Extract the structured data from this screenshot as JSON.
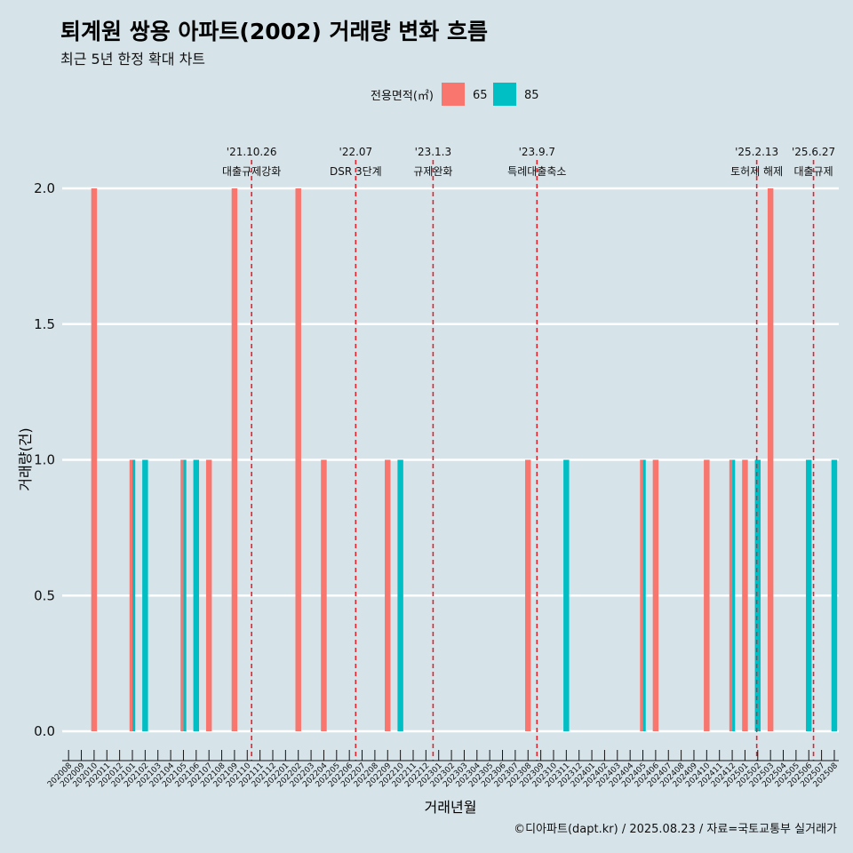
{
  "header": {
    "title": "퇴계원 쌍용 아파트(2002) 거래량 변화 흐름",
    "subtitle": "최근 5년 한정 확대 차트"
  },
  "footer": {
    "caption": "©디아파트(dapt.kr) / 2025.08.23 / 자료=국토교통부 실거래가"
  },
  "colors": {
    "background": "#d6e4ea",
    "series_65": "#f8766d",
    "series_85": "#00bfc4",
    "event_line": "#e8202a",
    "grid": "#ffffff"
  },
  "chart_data": {
    "type": "bar",
    "xlabel": "거래년월",
    "ylabel": "거래량(건)",
    "ylim": [
      0,
      2
    ],
    "yticks": [
      0.0,
      0.5,
      1.0,
      1.5,
      2.0
    ],
    "ytick_labels": [
      "0.0",
      "0.5",
      "1.0",
      "1.5",
      "2.0"
    ],
    "legend": {
      "title": "전용면적(㎡)",
      "placement": "top"
    },
    "categories": [
      "202008",
      "202009",
      "202010",
      "202011",
      "202012",
      "202101",
      "202102",
      "202103",
      "202104",
      "202105",
      "202106",
      "202107",
      "202108",
      "202109",
      "202110",
      "202111",
      "202112",
      "202201",
      "202202",
      "202203",
      "202204",
      "202205",
      "202206",
      "202207",
      "202208",
      "202209",
      "202210",
      "202211",
      "202212",
      "202301",
      "202302",
      "202303",
      "202304",
      "202305",
      "202306",
      "202307",
      "202308",
      "202309",
      "202310",
      "202311",
      "202312",
      "202401",
      "202402",
      "202403",
      "202404",
      "202405",
      "202406",
      "202407",
      "202408",
      "202409",
      "202410",
      "202411",
      "202412",
      "202501",
      "202502",
      "202503",
      "202504",
      "202505",
      "202506",
      "202507",
      "202508"
    ],
    "series": [
      {
        "name": "65",
        "values": [
          0,
          0,
          2,
          0,
          0,
          1,
          0,
          0,
          0,
          1,
          0,
          1,
          0,
          2,
          0,
          0,
          0,
          0,
          2,
          0,
          1,
          0,
          0,
          0,
          0,
          1,
          0,
          0,
          0,
          0,
          0,
          0,
          0,
          0,
          0,
          0,
          1,
          0,
          0,
          0,
          0,
          0,
          0,
          0,
          0,
          1,
          1,
          0,
          0,
          0,
          1,
          0,
          1,
          1,
          0,
          2,
          0,
          0,
          0,
          0,
          0
        ]
      },
      {
        "name": "85",
        "values": [
          0,
          0,
          0,
          0,
          0,
          1,
          1,
          0,
          0,
          1,
          1,
          0,
          0,
          0,
          0,
          0,
          0,
          0,
          0,
          0,
          0,
          0,
          0,
          0,
          0,
          0,
          1,
          0,
          0,
          0,
          0,
          0,
          0,
          0,
          0,
          0,
          0,
          0,
          0,
          1,
          0,
          0,
          0,
          0,
          0,
          1,
          0,
          0,
          0,
          0,
          0,
          0,
          1,
          0,
          1,
          0,
          0,
          0,
          1,
          0,
          1
        ]
      }
    ],
    "events": [
      {
        "date": "'21.10.26",
        "label": "대출규제강화",
        "category": "202110",
        "frac": 0.84
      },
      {
        "date": "'22.07",
        "label": "DSR 3단계",
        "category": "202207",
        "frac": 0.0
      },
      {
        "date": "'23.1.3",
        "label": "규제완화",
        "category": "202301",
        "frac": 0.06
      },
      {
        "date": "'23.9.7",
        "label": "특례대출축소",
        "category": "202309",
        "frac": 0.2
      },
      {
        "date": "'25.2.13",
        "label": "토허제 해제",
        "category": "202502",
        "frac": 0.42
      },
      {
        "date": "'25.6.27",
        "label": "대출규제",
        "category": "202506",
        "frac": 0.87
      }
    ]
  }
}
